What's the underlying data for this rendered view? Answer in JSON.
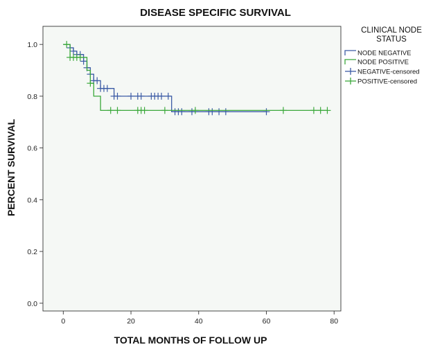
{
  "chart_data": {
    "type": "line",
    "subtype": "kaplan-meier",
    "title": "DISEASE SPECIFIC SURVIVAL",
    "xlabel": "TOTAL MONTHS OF FOLLOW UP",
    "ylabel": "PERCENT SURVIVAL",
    "xlim": [
      -6,
      82
    ],
    "ylim": [
      -0.03,
      1.07
    ],
    "x_ticks": [
      0,
      20,
      40,
      60,
      80
    ],
    "y_ticks": [
      0.0,
      0.2,
      0.4,
      0.6,
      0.8,
      1.0
    ],
    "x_tick_labels": [
      "0",
      "20",
      "40",
      "60",
      "80"
    ],
    "y_tick_labels": [
      "0.0",
      "0.2",
      "0.4",
      "0.6",
      "0.8",
      "1.0"
    ],
    "grid": false,
    "plot_background": "#f5f8f5",
    "legend": {
      "title_lines": [
        "CLINICAL NODE",
        "STATUS"
      ],
      "placement": "right"
    },
    "series": [
      {
        "name": "NODE NEGATIVE",
        "color": "#3b5ba5",
        "steps": [
          [
            0,
            1.0
          ],
          [
            2,
            0.987
          ],
          [
            3,
            0.974
          ],
          [
            4,
            0.961
          ],
          [
            6,
            0.935
          ],
          [
            7,
            0.91
          ],
          [
            8,
            0.885
          ],
          [
            9,
            0.86
          ],
          [
            11,
            0.83
          ],
          [
            15,
            0.8
          ],
          [
            32,
            0.74
          ],
          [
            60,
            0.74
          ]
        ],
        "censored_name": "NEGATIVE-censored",
        "censored": [
          [
            2,
            0.987
          ],
          [
            3,
            0.974
          ],
          [
            4,
            0.961
          ],
          [
            5,
            0.961
          ],
          [
            6,
            0.935
          ],
          [
            7,
            0.91
          ],
          [
            8,
            0.885
          ],
          [
            9,
            0.86
          ],
          [
            10,
            0.86
          ],
          [
            11,
            0.83
          ],
          [
            12,
            0.83
          ],
          [
            13,
            0.83
          ],
          [
            15,
            0.8
          ],
          [
            16,
            0.8
          ],
          [
            20,
            0.8
          ],
          [
            22,
            0.8
          ],
          [
            23,
            0.8
          ],
          [
            26,
            0.8
          ],
          [
            27,
            0.8
          ],
          [
            28,
            0.8
          ],
          [
            29,
            0.8
          ],
          [
            31,
            0.8
          ],
          [
            33,
            0.74
          ],
          [
            34,
            0.74
          ],
          [
            35,
            0.74
          ],
          [
            38,
            0.74
          ],
          [
            43,
            0.74
          ],
          [
            44,
            0.74
          ],
          [
            46,
            0.74
          ],
          [
            48,
            0.74
          ],
          [
            60,
            0.74
          ]
        ]
      },
      {
        "name": "NODE POSITIVE",
        "color": "#3aa83a",
        "steps": [
          [
            0,
            1.0
          ],
          [
            2,
            0.95
          ],
          [
            7,
            0.9
          ],
          [
            8,
            0.85
          ],
          [
            9,
            0.8
          ],
          [
            11,
            0.745
          ],
          [
            78,
            0.745
          ]
        ],
        "censored_name": "POSITIVE-censored",
        "censored": [
          [
            1,
            1.0
          ],
          [
            2,
            0.95
          ],
          [
            3,
            0.95
          ],
          [
            4,
            0.95
          ],
          [
            5,
            0.95
          ],
          [
            8,
            0.85
          ],
          [
            14,
            0.745
          ],
          [
            16,
            0.745
          ],
          [
            22,
            0.745
          ],
          [
            23,
            0.745
          ],
          [
            24,
            0.745
          ],
          [
            30,
            0.745
          ],
          [
            39,
            0.745
          ],
          [
            65,
            0.745
          ],
          [
            74,
            0.745
          ],
          [
            76,
            0.745
          ],
          [
            78,
            0.745
          ]
        ]
      }
    ]
  }
}
